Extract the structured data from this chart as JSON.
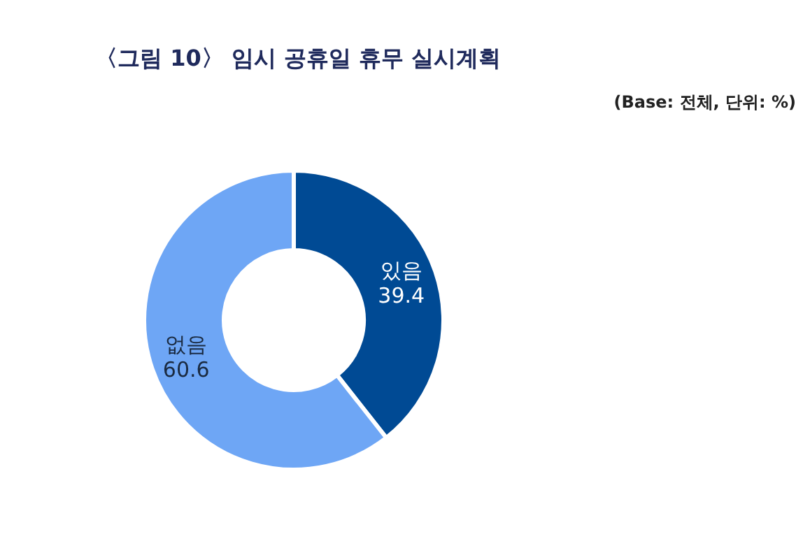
{
  "chart_data": {
    "type": "donut",
    "title": "〈그림 10〉 임시 공휴일 휴무 실시계획",
    "subtitle": "(Base: 전체, 단위: %)",
    "categories": [
      "있음",
      "없음"
    ],
    "values": [
      39.4,
      60.6
    ],
    "colors": [
      "#004a94",
      "#6ea6f5"
    ],
    "data_labels": true
  }
}
